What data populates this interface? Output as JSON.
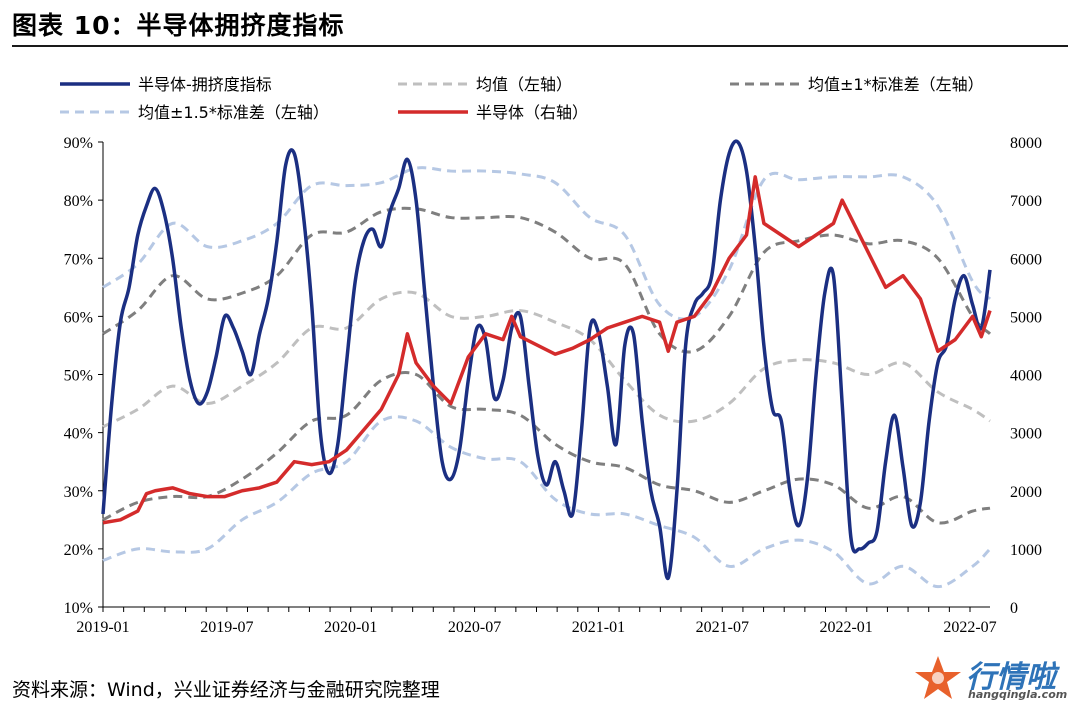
{
  "header": {
    "title": "图表 10：半导体拥挤度指标"
  },
  "footer": {
    "source": "资料来源：Wind，兴业证券经济与金融研究院整理"
  },
  "watermark": {
    "name": "行情啦",
    "url": "hangqingla.com"
  },
  "colors": {
    "crowding": "#1b2f82",
    "mean": "#bfbfbf",
    "mean_1sd": "#7f7f7f",
    "mean_15sd": "#b6c8e4",
    "semi": "#d42b2b"
  },
  "chart_data": {
    "type": "line",
    "x_tick_labels": [
      "2019-01",
      "2019-07",
      "2020-01",
      "2020-07",
      "2021-01",
      "2021-07",
      "2022-01",
      "2022-07"
    ],
    "y_left": {
      "min": 0.1,
      "max": 0.9,
      "tick_labels": [
        "10%",
        "20%",
        "30%",
        "40%",
        "50%",
        "60%",
        "70%",
        "80%",
        "90%"
      ]
    },
    "y_right": {
      "min": 0,
      "max": 8000,
      "tick_labels": [
        "0",
        "1000",
        "2000",
        "3000",
        "4000",
        "5000",
        "6000",
        "7000",
        "8000"
      ]
    },
    "legend": [
      "半导体-拥挤度指标",
      "均值（左轴）",
      "均值±1*标准差（左轴）",
      "均值±1.5*标准差（左轴）",
      "半导体（右轴）"
    ],
    "series": [
      {
        "name": "半导体-拥挤度指标",
        "axis": "left",
        "style": "solid",
        "points": [
          [
            0,
            0.26
          ],
          [
            1,
            0.45
          ],
          [
            2,
            0.59
          ],
          [
            3,
            0.65
          ],
          [
            4,
            0.74
          ],
          [
            5,
            0.79
          ],
          [
            6,
            0.82
          ],
          [
            7,
            0.78
          ],
          [
            8,
            0.7
          ],
          [
            9,
            0.58
          ],
          [
            10,
            0.49
          ],
          [
            11,
            0.45
          ],
          [
            12,
            0.47
          ],
          [
            13,
            0.53
          ],
          [
            14,
            0.6
          ],
          [
            15,
            0.58
          ],
          [
            16,
            0.54
          ],
          [
            17,
            0.5
          ],
          [
            18,
            0.57
          ],
          [
            19,
            0.63
          ],
          [
            20,
            0.73
          ],
          [
            21,
            0.86
          ],
          [
            22,
            0.88
          ],
          [
            23,
            0.78
          ],
          [
            24,
            0.62
          ],
          [
            25,
            0.4
          ],
          [
            26,
            0.33
          ],
          [
            27,
            0.38
          ],
          [
            28,
            0.52
          ],
          [
            29,
            0.66
          ],
          [
            30,
            0.73
          ],
          [
            31,
            0.75
          ],
          [
            32,
            0.72
          ],
          [
            33,
            0.78
          ],
          [
            34,
            0.82
          ],
          [
            35,
            0.87
          ],
          [
            36,
            0.8
          ],
          [
            37,
            0.64
          ],
          [
            38,
            0.48
          ],
          [
            39,
            0.35
          ],
          [
            40,
            0.32
          ],
          [
            41,
            0.37
          ],
          [
            42,
            0.49
          ],
          [
            43,
            0.58
          ],
          [
            44,
            0.56
          ],
          [
            45,
            0.46
          ],
          [
            46,
            0.49
          ],
          [
            47,
            0.58
          ],
          [
            48,
            0.6
          ],
          [
            49,
            0.48
          ],
          [
            50,
            0.36
          ],
          [
            51,
            0.31
          ],
          [
            52,
            0.35
          ],
          [
            53,
            0.3
          ],
          [
            54,
            0.26
          ],
          [
            55,
            0.4
          ],
          [
            56,
            0.58
          ],
          [
            57,
            0.57
          ],
          [
            58,
            0.48
          ],
          [
            59,
            0.38
          ],
          [
            60,
            0.55
          ],
          [
            61,
            0.57
          ],
          [
            62,
            0.42
          ],
          [
            63,
            0.3
          ],
          [
            64,
            0.24
          ],
          [
            65,
            0.15
          ],
          [
            66,
            0.3
          ],
          [
            67,
            0.55
          ],
          [
            68,
            0.62
          ],
          [
            69,
            0.64
          ],
          [
            70,
            0.67
          ],
          [
            71,
            0.8
          ],
          [
            72,
            0.88
          ],
          [
            73,
            0.9
          ],
          [
            74,
            0.85
          ],
          [
            75,
            0.72
          ],
          [
            76,
            0.55
          ],
          [
            77,
            0.44
          ],
          [
            78,
            0.42
          ],
          [
            79,
            0.3
          ],
          [
            80,
            0.24
          ],
          [
            81,
            0.32
          ],
          [
            82,
            0.5
          ],
          [
            83,
            0.64
          ],
          [
            84,
            0.67
          ],
          [
            85,
            0.45
          ],
          [
            86,
            0.22
          ],
          [
            87,
            0.2
          ],
          [
            88,
            0.21
          ],
          [
            89,
            0.23
          ],
          [
            90,
            0.35
          ],
          [
            91,
            0.43
          ],
          [
            92,
            0.34
          ],
          [
            93,
            0.24
          ],
          [
            94,
            0.28
          ],
          [
            95,
            0.42
          ],
          [
            96,
            0.52
          ],
          [
            97,
            0.55
          ],
          [
            98,
            0.63
          ],
          [
            99,
            0.67
          ],
          [
            100,
            0.62
          ],
          [
            101,
            0.58
          ],
          [
            102,
            0.68
          ]
        ]
      },
      {
        "name": "均值（左轴）",
        "axis": "left",
        "style": "dashed",
        "points": [
          [
            0,
            0.41
          ],
          [
            4,
            0.44
          ],
          [
            8,
            0.48
          ],
          [
            12,
            0.45
          ],
          [
            16,
            0.48
          ],
          [
            20,
            0.52
          ],
          [
            24,
            0.58
          ],
          [
            28,
            0.58
          ],
          [
            32,
            0.63
          ],
          [
            36,
            0.64
          ],
          [
            40,
            0.6
          ],
          [
            44,
            0.6
          ],
          [
            48,
            0.61
          ],
          [
            52,
            0.59
          ],
          [
            56,
            0.56
          ],
          [
            60,
            0.49
          ],
          [
            64,
            0.43
          ],
          [
            68,
            0.42
          ],
          [
            72,
            0.45
          ],
          [
            76,
            0.51
          ],
          [
            80,
            0.525
          ],
          [
            84,
            0.52
          ],
          [
            88,
            0.5
          ],
          [
            92,
            0.52
          ],
          [
            96,
            0.47
          ],
          [
            100,
            0.44
          ],
          [
            102,
            0.42
          ]
        ]
      },
      {
        "name": "均值±1*标准差（左轴）",
        "axis": "left",
        "style": "dashed",
        "points": [
          [
            0,
            0.57
          ],
          [
            4,
            0.61
          ],
          [
            8,
            0.67
          ],
          [
            12,
            0.63
          ],
          [
            16,
            0.64
          ],
          [
            20,
            0.67
          ],
          [
            24,
            0.74
          ],
          [
            28,
            0.745
          ],
          [
            32,
            0.78
          ],
          [
            36,
            0.785
          ],
          [
            40,
            0.77
          ],
          [
            44,
            0.77
          ],
          [
            48,
            0.77
          ],
          [
            52,
            0.745
          ],
          [
            56,
            0.7
          ],
          [
            60,
            0.69
          ],
          [
            64,
            0.57
          ],
          [
            68,
            0.54
          ],
          [
            72,
            0.6
          ],
          [
            76,
            0.71
          ],
          [
            80,
            0.73
          ],
          [
            84,
            0.74
          ],
          [
            88,
            0.725
          ],
          [
            92,
            0.73
          ],
          [
            96,
            0.7
          ],
          [
            100,
            0.6
          ],
          [
            102,
            0.57
          ]
        ]
      },
      {
        "name": "均值±1*标准差（左轴）",
        "axis": "left",
        "style": "dashed",
        "points": [
          [
            0,
            0.25
          ],
          [
            4,
            0.28
          ],
          [
            8,
            0.29
          ],
          [
            12,
            0.29
          ],
          [
            16,
            0.32
          ],
          [
            20,
            0.365
          ],
          [
            24,
            0.42
          ],
          [
            28,
            0.43
          ],
          [
            32,
            0.49
          ],
          [
            36,
            0.5
          ],
          [
            40,
            0.445
          ],
          [
            44,
            0.44
          ],
          [
            48,
            0.43
          ],
          [
            52,
            0.38
          ],
          [
            56,
            0.35
          ],
          [
            60,
            0.34
          ],
          [
            64,
            0.31
          ],
          [
            68,
            0.3
          ],
          [
            72,
            0.28
          ],
          [
            76,
            0.3
          ],
          [
            80,
            0.32
          ],
          [
            84,
            0.31
          ],
          [
            88,
            0.27
          ],
          [
            92,
            0.29
          ],
          [
            96,
            0.245
          ],
          [
            100,
            0.265
          ],
          [
            102,
            0.27
          ]
        ]
      },
      {
        "name": "均值±1.5*标准差（左轴）",
        "axis": "left",
        "style": "dashed",
        "points": [
          [
            0,
            0.65
          ],
          [
            4,
            0.69
          ],
          [
            8,
            0.76
          ],
          [
            12,
            0.72
          ],
          [
            16,
            0.73
          ],
          [
            20,
            0.76
          ],
          [
            24,
            0.825
          ],
          [
            28,
            0.825
          ],
          [
            32,
            0.83
          ],
          [
            36,
            0.855
          ],
          [
            40,
            0.85
          ],
          [
            44,
            0.85
          ],
          [
            48,
            0.845
          ],
          [
            52,
            0.83
          ],
          [
            56,
            0.77
          ],
          [
            60,
            0.74
          ],
          [
            64,
            0.62
          ],
          [
            68,
            0.6
          ],
          [
            72,
            0.68
          ],
          [
            76,
            0.835
          ],
          [
            80,
            0.835
          ],
          [
            84,
            0.84
          ],
          [
            88,
            0.84
          ],
          [
            92,
            0.84
          ],
          [
            96,
            0.79
          ],
          [
            100,
            0.66
          ],
          [
            102,
            0.63
          ]
        ]
      },
      {
        "name": "均值±1.5*标准差（左轴）",
        "axis": "left",
        "style": "dashed",
        "points": [
          [
            0,
            0.18
          ],
          [
            4,
            0.2
          ],
          [
            8,
            0.195
          ],
          [
            12,
            0.2
          ],
          [
            16,
            0.25
          ],
          [
            20,
            0.28
          ],
          [
            24,
            0.33
          ],
          [
            28,
            0.35
          ],
          [
            32,
            0.42
          ],
          [
            36,
            0.42
          ],
          [
            40,
            0.375
          ],
          [
            44,
            0.355
          ],
          [
            48,
            0.35
          ],
          [
            52,
            0.285
          ],
          [
            56,
            0.26
          ],
          [
            60,
            0.26
          ],
          [
            64,
            0.24
          ],
          [
            68,
            0.22
          ],
          [
            72,
            0.17
          ],
          [
            76,
            0.2
          ],
          [
            80,
            0.215
          ],
          [
            84,
            0.195
          ],
          [
            88,
            0.14
          ],
          [
            92,
            0.17
          ],
          [
            96,
            0.135
          ],
          [
            100,
            0.17
          ],
          [
            102,
            0.2
          ]
        ]
      },
      {
        "name": "半导体（右轴）",
        "axis": "right",
        "style": "solid",
        "points": [
          [
            0,
            1450
          ],
          [
            2,
            1500
          ],
          [
            4,
            1650
          ],
          [
            5,
            1950
          ],
          [
            6,
            2000
          ],
          [
            8,
            2050
          ],
          [
            10,
            1950
          ],
          [
            12,
            1900
          ],
          [
            14,
            1900
          ],
          [
            16,
            2000
          ],
          [
            18,
            2050
          ],
          [
            20,
            2150
          ],
          [
            22,
            2500
          ],
          [
            24,
            2450
          ],
          [
            26,
            2500
          ],
          [
            28,
            2700
          ],
          [
            30,
            3050
          ],
          [
            32,
            3400
          ],
          [
            34,
            4000
          ],
          [
            35,
            4700
          ],
          [
            36,
            4200
          ],
          [
            38,
            3800
          ],
          [
            40,
            3500
          ],
          [
            42,
            4300
          ],
          [
            44,
            4700
          ],
          [
            46,
            4600
          ],
          [
            47,
            5000
          ],
          [
            48,
            4650
          ],
          [
            50,
            4500
          ],
          [
            52,
            4350
          ],
          [
            54,
            4450
          ],
          [
            56,
            4600
          ],
          [
            58,
            4800
          ],
          [
            60,
            4900
          ],
          [
            62,
            5000
          ],
          [
            64,
            4900
          ],
          [
            65,
            4400
          ],
          [
            66,
            4900
          ],
          [
            68,
            5000
          ],
          [
            70,
            5400
          ],
          [
            72,
            6000
          ],
          [
            74,
            6400
          ],
          [
            75,
            7400
          ],
          [
            76,
            6600
          ],
          [
            78,
            6400
          ],
          [
            80,
            6200
          ],
          [
            82,
            6400
          ],
          [
            84,
            6600
          ],
          [
            85,
            7000
          ],
          [
            86,
            6700
          ],
          [
            88,
            6100
          ],
          [
            90,
            5500
          ],
          [
            92,
            5700
          ],
          [
            94,
            5300
          ],
          [
            96,
            4400
          ],
          [
            98,
            4600
          ],
          [
            100,
            5000
          ],
          [
            101,
            4650
          ],
          [
            102,
            5100
          ]
        ]
      }
    ]
  }
}
